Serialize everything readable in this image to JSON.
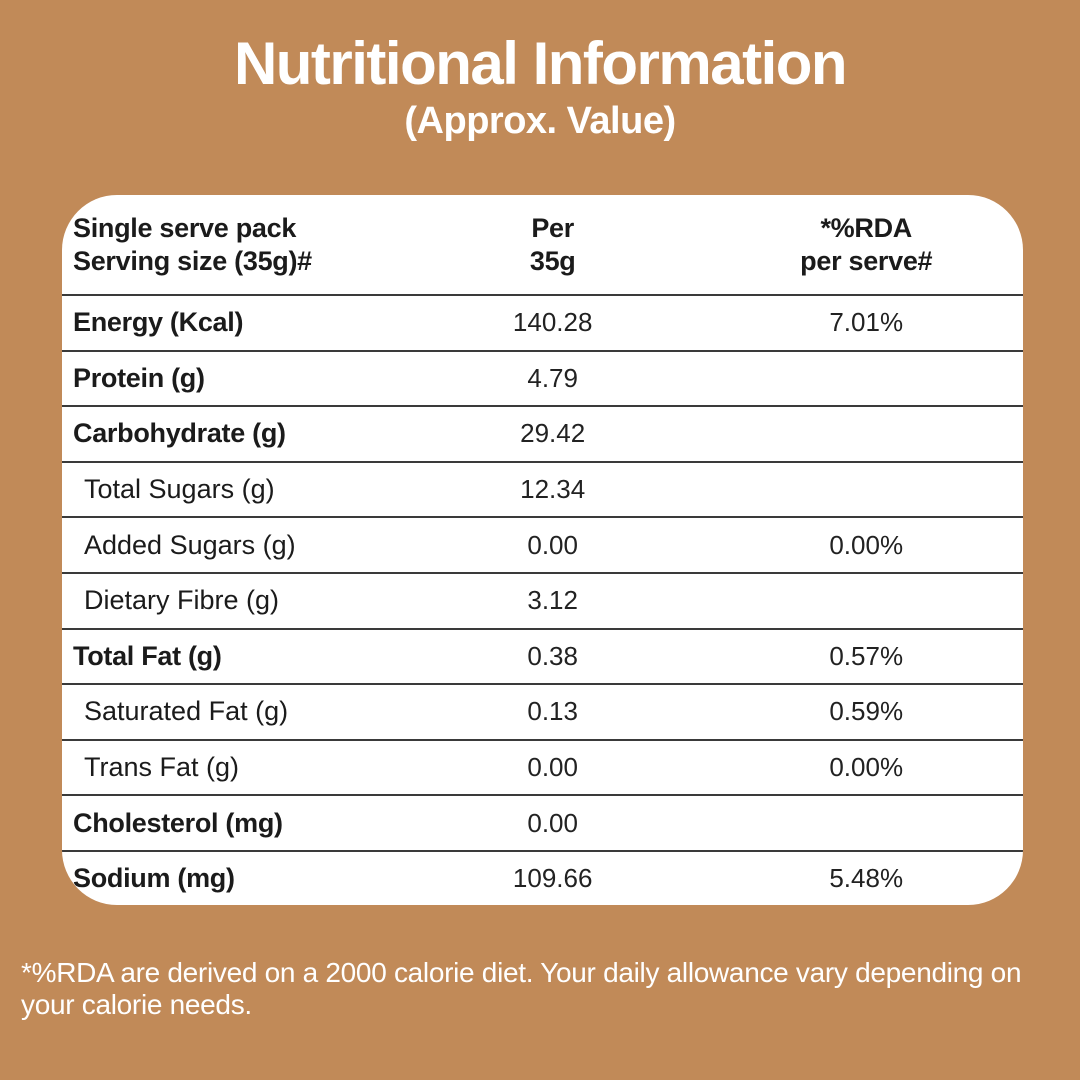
{
  "page": {
    "background_color": "#c18a58",
    "card_color": "#ffffff",
    "text_color": "#1b1b1b",
    "title": "Nutritional Information",
    "subtitle": "(Approx. Value)",
    "footnote_line1": "*%RDA are derived on a 2000 calorie diet. Your daily allowance vary depending on",
    "footnote_line2": "your calorie needs."
  },
  "table": {
    "header": {
      "col1_line1": "Single serve pack",
      "col1_line2": "Serving size (35g)#",
      "col2_line1": "Per",
      "col2_line2": "35g",
      "col3_line1": "*%RDA",
      "col3_line2": "per serve#"
    },
    "rows": [
      {
        "label": "Energy (Kcal)",
        "per_serve": "140.28",
        "rda": "7.01%",
        "style": "bold"
      },
      {
        "label": "Protein (g)",
        "per_serve": "4.79",
        "rda": "",
        "style": "bold"
      },
      {
        "label": "Carbohydrate (g)",
        "per_serve": "29.42",
        "rda": "",
        "style": "bold"
      },
      {
        "label": "Total Sugars (g)",
        "per_serve": "12.34",
        "rda": "",
        "style": "sub"
      },
      {
        "label": "Added Sugars (g)",
        "per_serve": "0.00",
        "rda": "0.00%",
        "style": "sub"
      },
      {
        "label": "Dietary Fibre (g)",
        "per_serve": "3.12",
        "rda": "",
        "style": "sub"
      },
      {
        "label": "Total Fat (g)",
        "per_serve": "0.38",
        "rda": "0.57%",
        "style": "bold"
      },
      {
        "label": "Saturated Fat (g)",
        "per_serve": "0.13",
        "rda": "0.59%",
        "style": "sub"
      },
      {
        "label": "Trans Fat (g)",
        "per_serve": "0.00",
        "rda": "0.00%",
        "style": "sub"
      },
      {
        "label": "Cholesterol (mg)",
        "per_serve": "0.00",
        "rda": "",
        "style": "bold"
      },
      {
        "label": "Sodium (mg)",
        "per_serve": "109.66",
        "rda": "5.48%",
        "style": "bold"
      }
    ]
  }
}
